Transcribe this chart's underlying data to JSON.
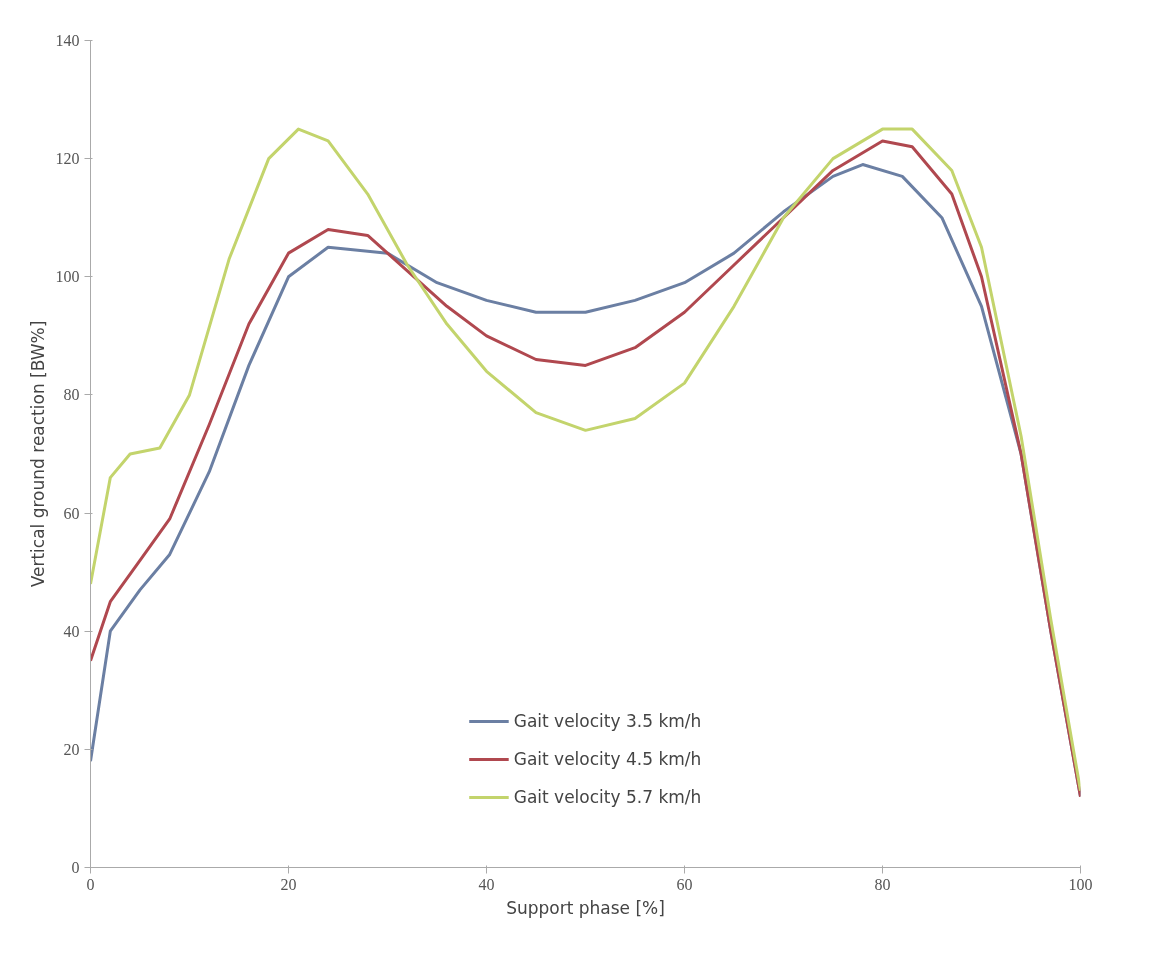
{
  "chart_data": {
    "type": "line",
    "xlabel": "Support phase [%]",
    "ylabel": "Vertical ground reaction [BW%]",
    "xlim": [
      0,
      100
    ],
    "ylim": [
      0,
      140
    ],
    "xticks": [
      0,
      20,
      40,
      60,
      80,
      100
    ],
    "yticks": [
      0,
      20,
      40,
      60,
      80,
      100,
      120,
      140
    ],
    "grid": false,
    "legend": "bottom",
    "line_style": "solid",
    "series": [
      {
        "name": "Gait velocity 3.5 km/h",
        "color": "#6b7fa3",
        "x": [
          0,
          2,
          5,
          8,
          12,
          16,
          20,
          24,
          30,
          35,
          40,
          45,
          50,
          55,
          60,
          65,
          70,
          75,
          78,
          82,
          86,
          90,
          94,
          97,
          100
        ],
        "values": [
          18,
          40,
          47,
          53,
          67,
          85,
          100,
          105,
          104,
          99,
          96,
          94,
          94,
          96,
          99,
          104,
          111,
          117,
          119,
          117,
          110,
          95,
          70,
          40,
          12
        ]
      },
      {
        "name": "Gait velocity 4.5 km/h",
        "color": "#b0484f",
        "x": [
          0,
          2,
          5,
          8,
          12,
          16,
          20,
          24,
          28,
          32,
          36,
          40,
          45,
          50,
          55,
          60,
          65,
          70,
          75,
          80,
          83,
          87,
          90,
          94,
          97,
          100
        ],
        "values": [
          35,
          45,
          52,
          59,
          75,
          92,
          104,
          108,
          107,
          101,
          95,
          90,
          86,
          85,
          88,
          94,
          102,
          110,
          118,
          123,
          122,
          114,
          100,
          70,
          40,
          12
        ]
      },
      {
        "name": "Gait velocity 5.7 km/h",
        "color": "#c3d46c",
        "x": [
          0,
          2,
          4,
          7,
          10,
          14,
          18,
          21,
          24,
          28,
          32,
          36,
          40,
          45,
          50,
          55,
          60,
          65,
          70,
          75,
          80,
          83,
          87,
          90,
          94,
          97,
          100
        ],
        "values": [
          48,
          66,
          70,
          71,
          80,
          103,
          120,
          125,
          123,
          114,
          102,
          92,
          84,
          77,
          74,
          76,
          82,
          95,
          110,
          120,
          125,
          125,
          118,
          105,
          73,
          42,
          13
        ]
      }
    ]
  }
}
